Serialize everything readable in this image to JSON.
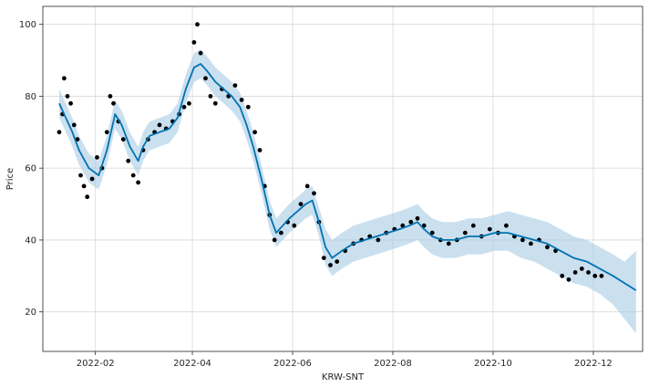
{
  "chart_data": {
    "type": "line",
    "title": "",
    "xlabel": "KRW-SNT",
    "ylabel": "Price",
    "x_axis_type": "date",
    "xlim": [
      "2021-12-31",
      "2022-12-31"
    ],
    "ylim": [
      9,
      105
    ],
    "x_ticks": [
      "2022-02",
      "2022-04",
      "2022-06",
      "2022-08",
      "2022-10",
      "2022-12"
    ],
    "y_ticks": [
      20,
      40,
      60,
      80,
      100
    ],
    "grid": true,
    "legend": "none",
    "colors": {
      "forecast_line": "#0072b2",
      "uncertainty_band": "#a6cce5",
      "observations": "#000000"
    },
    "series": [
      {
        "kind": "forecast",
        "x": [
          "2022-01-10",
          "2022-01-14",
          "2022-01-18",
          "2022-01-22",
          "2022-01-28",
          "2022-02-03",
          "2022-02-08",
          "2022-02-13",
          "2022-02-17",
          "2022-02-22",
          "2022-02-27",
          "2022-03-02",
          "2022-03-06",
          "2022-03-12",
          "2022-03-18",
          "2022-03-23",
          "2022-03-28",
          "2022-04-02",
          "2022-04-06",
          "2022-04-10",
          "2022-04-15",
          "2022-04-20",
          "2022-04-25",
          "2022-04-30",
          "2022-05-04",
          "2022-05-08",
          "2022-05-13",
          "2022-05-18",
          "2022-05-22",
          "2022-05-26",
          "2022-05-30",
          "2022-06-04",
          "2022-06-09",
          "2022-06-13",
          "2022-06-17",
          "2022-06-21",
          "2022-06-25",
          "2022-07-01",
          "2022-07-08",
          "2022-07-15",
          "2022-07-22",
          "2022-07-29",
          "2022-08-05",
          "2022-08-11",
          "2022-08-16",
          "2022-08-20",
          "2022-08-25",
          "2022-08-31",
          "2022-09-08",
          "2022-09-16",
          "2022-09-24",
          "2022-10-02",
          "2022-10-10",
          "2022-10-18",
          "2022-10-26",
          "2022-11-03",
          "2022-11-11",
          "2022-11-19",
          "2022-11-27",
          "2022-12-05",
          "2022-12-13",
          "2022-12-20",
          "2022-12-27"
        ],
        "y": [
          78,
          74,
          70,
          65,
          60,
          58,
          65,
          75,
          72,
          66,
          62,
          66,
          69,
          70,
          71,
          74,
          82,
          88,
          89,
          87,
          84,
          82,
          80,
          77,
          72,
          66,
          57,
          47,
          42,
          44,
          46,
          48,
          50,
          51,
          45,
          38,
          35,
          37,
          39,
          40,
          41,
          42,
          43,
          44,
          45,
          43,
          41,
          40,
          40,
          41,
          41,
          42,
          42,
          41,
          40,
          39,
          37,
          35,
          34,
          32,
          30,
          28,
          26
        ]
      },
      {
        "kind": "uncertainty_band",
        "x": [
          "2022-01-10",
          "2022-01-14",
          "2022-01-18",
          "2022-01-22",
          "2022-01-28",
          "2022-02-03",
          "2022-02-08",
          "2022-02-13",
          "2022-02-17",
          "2022-02-22",
          "2022-02-27",
          "2022-03-02",
          "2022-03-06",
          "2022-03-12",
          "2022-03-18",
          "2022-03-23",
          "2022-03-28",
          "2022-04-02",
          "2022-04-06",
          "2022-04-10",
          "2022-04-15",
          "2022-04-20",
          "2022-04-25",
          "2022-04-30",
          "2022-05-04",
          "2022-05-08",
          "2022-05-13",
          "2022-05-18",
          "2022-05-22",
          "2022-05-26",
          "2022-05-30",
          "2022-06-04",
          "2022-06-09",
          "2022-06-13",
          "2022-06-17",
          "2022-06-21",
          "2022-06-25",
          "2022-07-01",
          "2022-07-08",
          "2022-07-15",
          "2022-07-22",
          "2022-07-29",
          "2022-08-05",
          "2022-08-11",
          "2022-08-16",
          "2022-08-20",
          "2022-08-25",
          "2022-08-31",
          "2022-09-08",
          "2022-09-16",
          "2022-09-24",
          "2022-10-02",
          "2022-10-10",
          "2022-10-18",
          "2022-10-26",
          "2022-11-03",
          "2022-11-11",
          "2022-11-19",
          "2022-11-27",
          "2022-12-05",
          "2022-12-13",
          "2022-12-20",
          "2022-12-27"
        ],
        "lower": [
          74,
          70,
          66,
          61,
          56,
          54,
          61,
          71,
          68,
          62,
          58,
          62,
          65,
          66,
          67,
          70,
          78,
          84,
          85,
          83,
          80,
          78,
          76,
          73,
          68,
          62,
          53,
          43,
          38,
          40,
          42,
          44,
          46,
          47,
          41,
          33,
          30,
          32,
          34,
          35,
          36,
          37,
          38,
          39,
          40,
          38,
          36,
          35,
          35,
          36,
          36,
          37,
          37,
          35,
          34,
          32,
          30,
          28,
          27,
          25,
          22,
          18,
          14
        ],
        "upper": [
          82,
          78,
          74,
          69,
          64,
          62,
          69,
          79,
          76,
          70,
          66,
          70,
          73,
          74,
          75,
          78,
          86,
          92,
          93,
          91,
          88,
          86,
          84,
          81,
          76,
          70,
          61,
          51,
          46,
          48,
          50,
          52,
          54,
          55,
          49,
          43,
          40,
          42,
          44,
          45,
          46,
          47,
          48,
          49,
          50,
          48,
          46,
          45,
          45,
          46,
          46,
          47,
          48,
          47,
          46,
          45,
          43,
          41,
          40,
          38,
          36,
          34,
          37
        ]
      },
      {
        "kind": "observations",
        "x": [
          "2022-01-10",
          "2022-01-12",
          "2022-01-13",
          "2022-01-15",
          "2022-01-17",
          "2022-01-19",
          "2022-01-21",
          "2022-01-23",
          "2022-01-25",
          "2022-01-27",
          "2022-01-30",
          "2022-02-02",
          "2022-02-05",
          "2022-02-08",
          "2022-02-10",
          "2022-02-12",
          "2022-02-15",
          "2022-02-18",
          "2022-02-21",
          "2022-02-24",
          "2022-02-27",
          "2022-03-02",
          "2022-03-05",
          "2022-03-09",
          "2022-03-12",
          "2022-03-16",
          "2022-03-20",
          "2022-03-24",
          "2022-03-27",
          "2022-03-30",
          "2022-04-02",
          "2022-04-04",
          "2022-04-06",
          "2022-04-09",
          "2022-04-12",
          "2022-04-15",
          "2022-04-19",
          "2022-04-23",
          "2022-04-27",
          "2022-05-01",
          "2022-05-05",
          "2022-05-09",
          "2022-05-12",
          "2022-05-15",
          "2022-05-18",
          "2022-05-21",
          "2022-05-25",
          "2022-05-29",
          "2022-06-02",
          "2022-06-06",
          "2022-06-10",
          "2022-06-14",
          "2022-06-17",
          "2022-06-20",
          "2022-06-24",
          "2022-06-28",
          "2022-07-03",
          "2022-07-08",
          "2022-07-13",
          "2022-07-18",
          "2022-07-23",
          "2022-07-28",
          "2022-08-02",
          "2022-08-07",
          "2022-08-12",
          "2022-08-16",
          "2022-08-20",
          "2022-08-25",
          "2022-08-30",
          "2022-09-04",
          "2022-09-09",
          "2022-09-14",
          "2022-09-19",
          "2022-09-24",
          "2022-09-29",
          "2022-10-04",
          "2022-10-09",
          "2022-10-14",
          "2022-10-19",
          "2022-10-24",
          "2022-10-29",
          "2022-11-03",
          "2022-11-08",
          "2022-11-12",
          "2022-11-16",
          "2022-11-20",
          "2022-11-24",
          "2022-11-28",
          "2022-12-02",
          "2022-12-06"
        ],
        "y": [
          70,
          75,
          85,
          80,
          78,
          72,
          68,
          58,
          55,
          52,
          57,
          63,
          60,
          70,
          80,
          78,
          73,
          68,
          62,
          58,
          56,
          65,
          68,
          70,
          72,
          71,
          73,
          75,
          77,
          78,
          95,
          100,
          92,
          85,
          80,
          78,
          82,
          80,
          83,
          79,
          77,
          70,
          65,
          55,
          47,
          40,
          42,
          45,
          44,
          50,
          55,
          53,
          45,
          35,
          33,
          34,
          37,
          39,
          40,
          41,
          40,
          42,
          43,
          44,
          45,
          46,
          44,
          42,
          40,
          39,
          40,
          42,
          44,
          41,
          43,
          42,
          44,
          41,
          40,
          39,
          40,
          38,
          37,
          30,
          29,
          31,
          32,
          31,
          30,
          30
        ]
      }
    ]
  }
}
